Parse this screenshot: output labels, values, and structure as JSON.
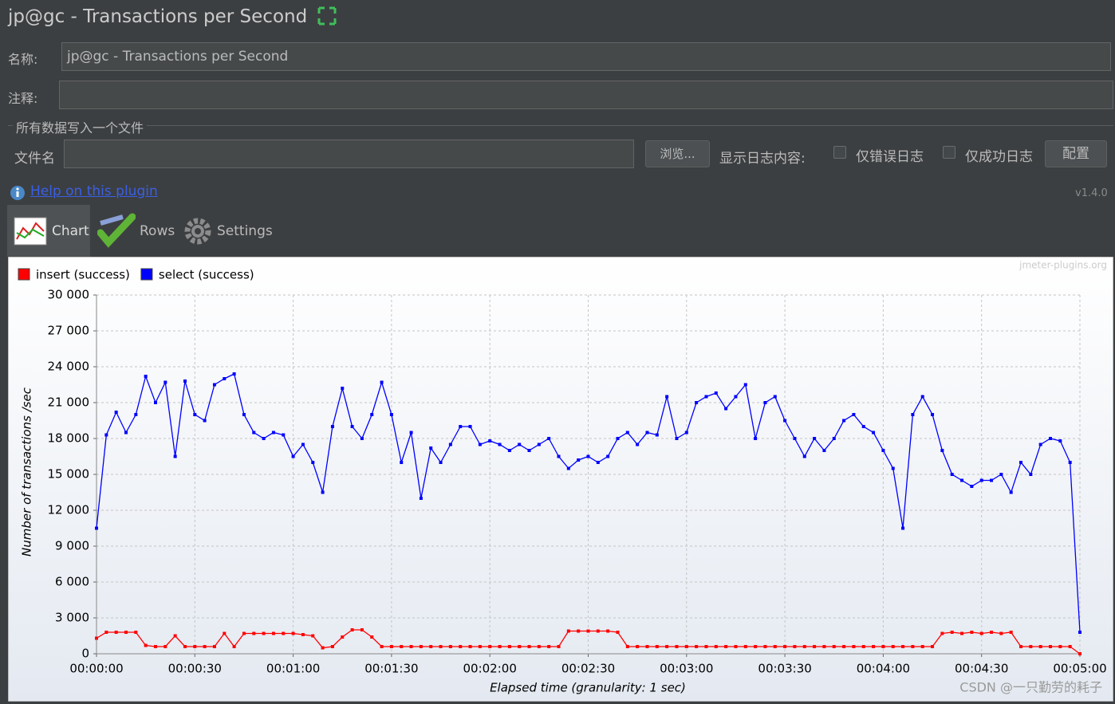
{
  "ui": {
    "title": "jp@gc - Transactions per Second",
    "name_label": "名称:",
    "name_value": "jp@gc - Transactions per Second",
    "comment_label": "注释:",
    "file_group": "所有数据写入一个文件",
    "file_label": "文件名",
    "browse": "浏览...",
    "log_label": "显示日志内容:",
    "errors_only": "仅错误日志",
    "success_only": "仅成功日志",
    "config": "配置",
    "help": "Help on this plugin",
    "version": "v1.4.0",
    "tabs": [
      "Chart",
      "Rows",
      "Settings"
    ],
    "watermark": "jmeter-plugins.org",
    "credit": "CSDN @一只勤劳的耗子"
  },
  "chart_data": {
    "type": "line",
    "ylabel": "Number of transactions /sec",
    "xlabel": "Elapsed time (granularity: 1 sec)",
    "grid": true,
    "legend": "top-left",
    "x": [
      0,
      3,
      6,
      9,
      12,
      15,
      18,
      21,
      24,
      27,
      30,
      33,
      36,
      39,
      42,
      45,
      48,
      51,
      54,
      57,
      60,
      63,
      66,
      69,
      72,
      75,
      78,
      81,
      84,
      87,
      90,
      93,
      96,
      99,
      102,
      105,
      108,
      111,
      114,
      117,
      120,
      123,
      126,
      129,
      132,
      135,
      138,
      141,
      144,
      147,
      150,
      153,
      156,
      159,
      162,
      165,
      168,
      171,
      174,
      177,
      180,
      183,
      186,
      189,
      192,
      195,
      198,
      201,
      204,
      207,
      210,
      213,
      216,
      219,
      222,
      225,
      228,
      231,
      234,
      237,
      240,
      243,
      246,
      249,
      252,
      255,
      258,
      261,
      264,
      267,
      270,
      273,
      276,
      279,
      282,
      285,
      288,
      291,
      294,
      297,
      300
    ],
    "series": [
      {
        "name": "insert (success)",
        "color": "#ff0000",
        "values": [
          1300,
          1800,
          1800,
          1800,
          1800,
          700,
          600,
          600,
          1500,
          600,
          600,
          600,
          600,
          1700,
          600,
          1700,
          1700,
          1700,
          1700,
          1700,
          1700,
          1600,
          1500,
          500,
          600,
          1400,
          2000,
          2000,
          1400,
          600,
          600,
          600,
          600,
          600,
          600,
          600,
          600,
          600,
          600,
          600,
          600,
          600,
          600,
          600,
          600,
          600,
          600,
          600,
          1900,
          1900,
          1900,
          1900,
          1900,
          1800,
          600,
          600,
          600,
          600,
          600,
          600,
          600,
          600,
          600,
          600,
          600,
          600,
          600,
          600,
          600,
          600,
          600,
          600,
          600,
          600,
          600,
          600,
          600,
          600,
          600,
          600,
          600,
          600,
          600,
          600,
          600,
          600,
          1700,
          1800,
          1700,
          1800,
          1700,
          1800,
          1700,
          1800,
          600,
          600,
          600,
          600,
          600,
          600,
          0
        ]
      },
      {
        "name": "select (success)",
        "color": "#0000ff",
        "values": [
          10500,
          18300,
          20200,
          18500,
          20000,
          23200,
          21000,
          22700,
          16500,
          22800,
          20000,
          19500,
          22500,
          23000,
          23400,
          20000,
          18500,
          18000,
          18500,
          18300,
          16500,
          17500,
          16000,
          13500,
          19000,
          22200,
          19000,
          18000,
          20000,
          22700,
          20000,
          16000,
          18500,
          13000,
          17200,
          16000,
          17500,
          19000,
          19000,
          17500,
          17800,
          17500,
          17000,
          17500,
          17000,
          17500,
          18000,
          16500,
          15500,
          16200,
          16500,
          16000,
          16500,
          18000,
          18500,
          17500,
          18500,
          18300,
          21500,
          18000,
          18500,
          21000,
          21500,
          21800,
          20500,
          21500,
          22500,
          18000,
          21000,
          21500,
          19500,
          18000,
          16500,
          18000,
          17000,
          18000,
          19500,
          20000,
          19000,
          18500,
          17000,
          15500,
          10500,
          20000,
          21500,
          20000,
          17000,
          15000,
          14500,
          14000,
          14500,
          14500,
          15000,
          13500,
          16000,
          15000,
          17500,
          18000,
          17800,
          16000,
          1800
        ]
      }
    ],
    "xlim": [
      0,
      300
    ],
    "xticks": [
      {
        "value": 0,
        "label": "00:00:00"
      },
      {
        "value": 30,
        "label": "00:00:30"
      },
      {
        "value": 60,
        "label": "00:01:00"
      },
      {
        "value": 90,
        "label": "00:01:30"
      },
      {
        "value": 120,
        "label": "00:02:00"
      },
      {
        "value": 150,
        "label": "00:02:30"
      },
      {
        "value": 180,
        "label": "00:03:00"
      },
      {
        "value": 210,
        "label": "00:03:30"
      },
      {
        "value": 240,
        "label": "00:04:00"
      },
      {
        "value": 270,
        "label": "00:04:30"
      },
      {
        "value": 300,
        "label": "00:05:00"
      }
    ],
    "ylim": [
      0,
      30000
    ],
    "yticks": [
      0,
      {
        "value": 3000,
        "label": "3 000"
      },
      {
        "value": 6000,
        "label": "6 000"
      },
      {
        "value": 9000,
        "label": "9 000"
      },
      {
        "value": 12000,
        "label": "12 000"
      },
      {
        "value": 15000,
        "label": "15 000"
      },
      {
        "value": 18000,
        "label": "18 000"
      },
      {
        "value": 21000,
        "label": "21 000"
      },
      {
        "value": 24000,
        "label": "24 000"
      },
      {
        "value": 27000,
        "label": "27 000"
      },
      {
        "value": 30000,
        "label": "30 000"
      }
    ]
  }
}
